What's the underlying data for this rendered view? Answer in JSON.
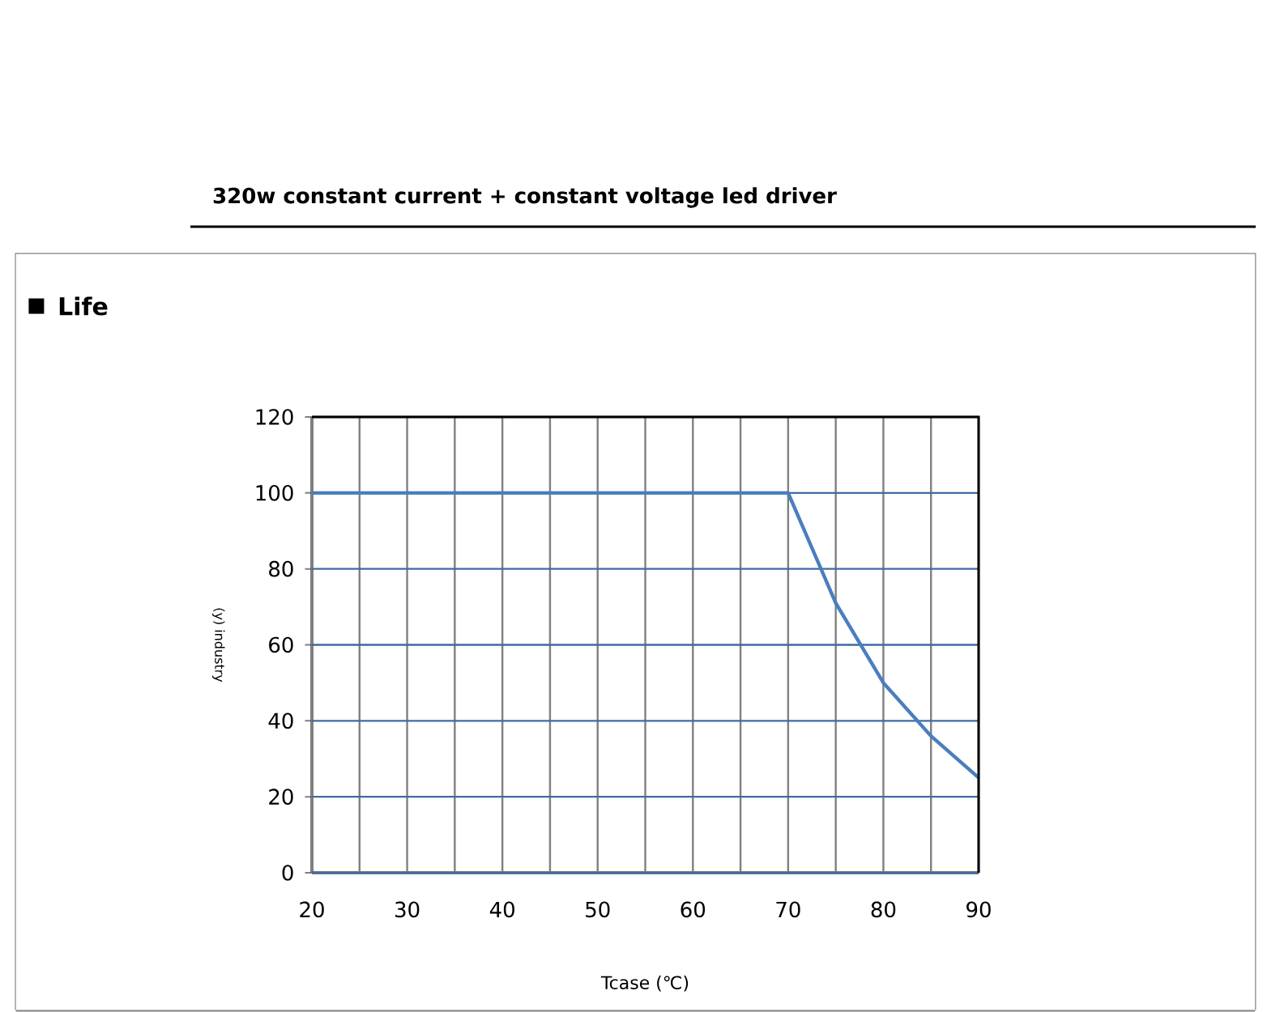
{
  "chart_data": {
    "type": "line",
    "title": "Life",
    "subtitle": "320w constant current + constant voltage led driver",
    "xlabel": "Tcase (℃)",
    "ylabel": "(y) industry",
    "x": [
      20,
      70,
      75,
      80,
      85,
      90
    ],
    "values": [
      100,
      100,
      71,
      50,
      36,
      25
    ],
    "color": "#4a7ebf",
    "xlim": [
      20,
      90
    ],
    "xticks": [
      20,
      {
        "value": 25,
        "label": null
      },
      30,
      {
        "value": 35,
        "label": null
      },
      40,
      {
        "value": 45,
        "label": null
      },
      50,
      {
        "value": 55,
        "label": null
      },
      60,
      {
        "value": 65,
        "label": null
      },
      70,
      {
        "value": 75,
        "label": null
      },
      80,
      {
        "value": 85,
        "label": null
      },
      90
    ],
    "ylim": [
      0,
      120
    ],
    "yticks": [
      0,
      20,
      40,
      60,
      80,
      100,
      120
    ],
    "grid": true
  }
}
